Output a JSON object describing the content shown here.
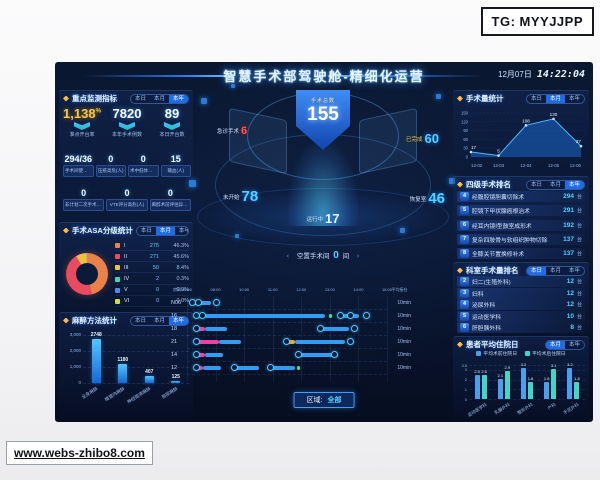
{
  "watermarks": {
    "tg": "TG: MYYJJPP",
    "site": "www.webs-zhibo8.com"
  },
  "header": {
    "title": "智慧手术部驾驶舱-精细化运营",
    "date": "12月07日",
    "time": "14:22:04"
  },
  "tabs_labels": [
    "本日",
    "本月",
    "本年"
  ],
  "left": {
    "monitor": {
      "title": "重点监测指标",
      "tabs": [
        "本日",
        "本月",
        "本年"
      ],
      "active_tab": "本年",
      "primary": [
        {
          "value": "1,138",
          "suffix": "%",
          "label": "准点开台率",
          "highlight": true
        },
        {
          "value": "7820",
          "suffix": "",
          "label": "本年手术例数",
          "highlight": false
        },
        {
          "value": "89",
          "suffix": "",
          "label": "本日开台数",
          "highlight": false
        }
      ],
      "secondary": [
        {
          "value": "294/36",
          "label": "手术间使用(间)"
        },
        {
          "value": "0",
          "label": "压疮高危(人)"
        },
        {
          "value": "0",
          "label": "术中低体温(人)"
        },
        {
          "value": "15",
          "label": "输血(人)"
        }
      ],
      "tertiary": [
        {
          "value": "0",
          "label": "非计划二次手术(人)"
        },
        {
          "value": "0",
          "label": "VTE评分高危(人)"
        },
        {
          "value": "0",
          "label": "麻醉术前评估异常(人)"
        }
      ]
    },
    "asa": {
      "title": "手术ASA分级统计",
      "tabs": [
        "本日",
        "本月",
        "本年"
      ],
      "active_tab": "本月"
    },
    "anesthesia": {
      "title": "麻醉方法统计",
      "tabs": [
        "本日",
        "本月",
        "本年"
      ],
      "active_tab": "本年"
    }
  },
  "center": {
    "total_label": "手术总数",
    "total": "155",
    "stats": [
      {
        "key": "emergency",
        "label": "急诊手术",
        "value": "6"
      },
      {
        "key": "done",
        "label": "已完成",
        "value": "60"
      },
      {
        "key": "notstarted",
        "label": "未开始",
        "value": "78"
      },
      {
        "key": "recovery",
        "label": "恢复室",
        "value": "46"
      },
      {
        "key": "running",
        "label": "运行中",
        "value": "17"
      }
    ],
    "empty_rooms": {
      "label": "空置手术间",
      "value": "0",
      "unit": "间"
    },
    "region_label": "区域:",
    "region_value": "全部"
  },
  "gantt": {
    "room_header": "房间",
    "avg_header": "平均接台",
    "ticks": [
      "06:00",
      "08:00",
      "10:00",
      "11:00",
      "12:00",
      "13:00",
      "14:00",
      "16:00"
    ],
    "colors": {
      "b": "#2f9df5",
      "p": "#ef3f9f",
      "g": "#2ee6a6",
      "o": "#f5a623"
    },
    "rows": [
      {
        "room": "N06",
        "turnover": "10min",
        "segments": [
          {
            "s": 2,
            "w": 10,
            "c": "b"
          }
        ],
        "markers": [
          1,
          4,
          13
        ]
      },
      {
        "room": "16",
        "turnover": "10min",
        "segments": [
          {
            "s": 4,
            "w": 5,
            "c": "p"
          },
          {
            "s": 9,
            "w": 60,
            "c": "b"
          },
          {
            "s": 71,
            "w": 1.5,
            "c": "g"
          },
          {
            "s": 77,
            "w": 9,
            "c": "b"
          }
        ],
        "markers": [
          3,
          6,
          75,
          80,
          88
        ]
      },
      {
        "room": "18",
        "turnover": "10min",
        "segments": [
          {
            "s": 4,
            "w": 5,
            "c": "p"
          },
          {
            "s": 9,
            "w": 11,
            "c": "b"
          },
          {
            "s": 67,
            "w": 14,
            "c": "b"
          }
        ],
        "markers": [
          3,
          65,
          82
        ]
      },
      {
        "room": "21",
        "turnover": "10min",
        "segments": [
          {
            "s": 4,
            "w": 12,
            "c": "p"
          },
          {
            "s": 16,
            "w": 11,
            "c": "b"
          },
          {
            "s": 50,
            "w": 4,
            "c": "o"
          },
          {
            "s": 54,
            "w": 25,
            "c": "b"
          }
        ],
        "markers": [
          3,
          48,
          80
        ]
      },
      {
        "room": "14",
        "turnover": "10min",
        "segments": [
          {
            "s": 4,
            "w": 5,
            "c": "p"
          },
          {
            "s": 9,
            "w": 9,
            "c": "b"
          },
          {
            "s": 56,
            "w": 17,
            "c": "b"
          },
          {
            "s": 74,
            "w": 1.5,
            "c": "g"
          }
        ],
        "markers": [
          3,
          54,
          72
        ]
      },
      {
        "room": "12",
        "turnover": "10min",
        "segments": [
          {
            "s": 4,
            "w": 4,
            "c": "p"
          },
          {
            "s": 8,
            "w": 9,
            "c": "b"
          },
          {
            "s": 24,
            "w": 12,
            "c": "b"
          },
          {
            "s": 42,
            "w": 12,
            "c": "b"
          },
          {
            "s": 55,
            "w": 1.5,
            "c": "g"
          }
        ],
        "markers": [
          3,
          22,
          40
        ]
      }
    ]
  },
  "right": {
    "volume": {
      "title": "手术量统计",
      "tabs": [
        "本日",
        "本月",
        "本年"
      ],
      "active_tab": "本月"
    },
    "four_level": {
      "title": "四级手术排名",
      "tabs": [
        "本日",
        "本月",
        "本年"
      ],
      "active_tab": "本年",
      "items": [
        {
          "rank": "4",
          "name": "经腹腔镜胆囊切除术",
          "value": "294",
          "unit": "台"
        },
        {
          "rank": "5",
          "name": "腔镜下甲状腺癌根治术",
          "value": "291",
          "unit": "台"
        },
        {
          "rank": "6",
          "name": "经耳内镜Ⅰ型鼓室成形术",
          "value": "192",
          "unit": "台"
        },
        {
          "rank": "7",
          "name": "复杂四肢骨与软组织肿物切除",
          "value": "137",
          "unit": "台"
        },
        {
          "rank": "8",
          "name": "全膝关节置换修补术",
          "value": "137",
          "unit": "台"
        }
      ]
    },
    "dept": {
      "title": "科室手术量排名",
      "tabs": [
        "本日",
        "本月",
        "本年"
      ],
      "active_tab": "本日",
      "items": [
        {
          "rank": "2",
          "name": "妇二(生殖外科)",
          "value": "12",
          "unit": "台"
        },
        {
          "rank": "3",
          "name": "妇科",
          "value": "12",
          "unit": "台"
        },
        {
          "rank": "4",
          "name": "泌尿外科",
          "value": "12",
          "unit": "台"
        },
        {
          "rank": "5",
          "name": "运动医学科",
          "value": "10",
          "unit": "台"
        },
        {
          "rank": "6",
          "name": "肝胆胰外科",
          "value": "8",
          "unit": "台"
        }
      ]
    },
    "stay": {
      "title": "患者平均住院日",
      "tabs": [
        "本月",
        "本年"
      ],
      "active_tab": "本月"
    }
  },
  "chart_data": [
    {
      "id": "surgery_volume",
      "type": "area",
      "title": "手术量统计",
      "x": [
        "12-02",
        "12-03",
        "12-04",
        "12-05",
        "12-06"
      ],
      "values": [
        17,
        5,
        108,
        130,
        37
      ],
      "ylim": [
        0,
        150
      ],
      "yticks": [
        0,
        30,
        60,
        90,
        120,
        150
      ],
      "line_color": "#4db8ff",
      "fill_color": "rgba(30,120,230,0.45)"
    },
    {
      "id": "asa_distribution",
      "type": "pie",
      "title": "手术ASA分级统计",
      "categories": [
        "I",
        "II",
        "III",
        "IV",
        "V",
        "VI"
      ],
      "values": [
        275,
        271,
        50,
        2,
        0,
        0
      ],
      "percents": [
        "46.3%",
        "45.6%",
        "8.4%",
        "0.3%",
        "0.0%",
        "0.0%"
      ],
      "colors": [
        "#e8824a",
        "#e84a5e",
        "#f0c040",
        "#3fd8b8",
        "#4a90e8",
        "#c6e04c"
      ]
    },
    {
      "id": "anesthesia_methods",
      "type": "bar",
      "title": "麻醉方法统计",
      "categories": [
        "全身麻醉",
        "椎管内麻醉",
        "神经阻滞麻醉",
        "局部麻醉"
      ],
      "values": [
        2748,
        1180,
        407,
        125
      ],
      "ylim": [
        0,
        3000
      ],
      "yticks": [
        0,
        1000,
        2000,
        3000
      ],
      "bar_color": "#36a6f0"
    },
    {
      "id": "avg_stay",
      "type": "bar",
      "title": "患者平均住院日",
      "categories": [
        "运动医学科",
        "乳腺外科",
        "整形外科",
        "产科",
        "手足外科"
      ],
      "series": [
        {
          "name": "平均术前住院日",
          "color": "#4a9ff0",
          "values": [
            2.5,
            2.1,
            3.2,
            1.8,
            3.2
          ]
        },
        {
          "name": "平均术后住院日",
          "color": "#3fd8c8",
          "values": [
            2.5,
            2.9,
            1.8,
            3.1,
            1.8
          ]
        }
      ],
      "ylim": [
        0,
        3.5
      ],
      "yticks": [
        0,
        1,
        2,
        3,
        3.5
      ]
    },
    {
      "id": "or_schedule",
      "type": "table",
      "title": "手术间排程",
      "columns": [
        "房间",
        "平均接台时间"
      ],
      "rows": [
        [
          "N06",
          "10min"
        ],
        [
          "16",
          "10min"
        ],
        [
          "18",
          "10min"
        ],
        [
          "21",
          "10min"
        ],
        [
          "14",
          "10min"
        ],
        [
          "12",
          "10min"
        ]
      ]
    }
  ]
}
